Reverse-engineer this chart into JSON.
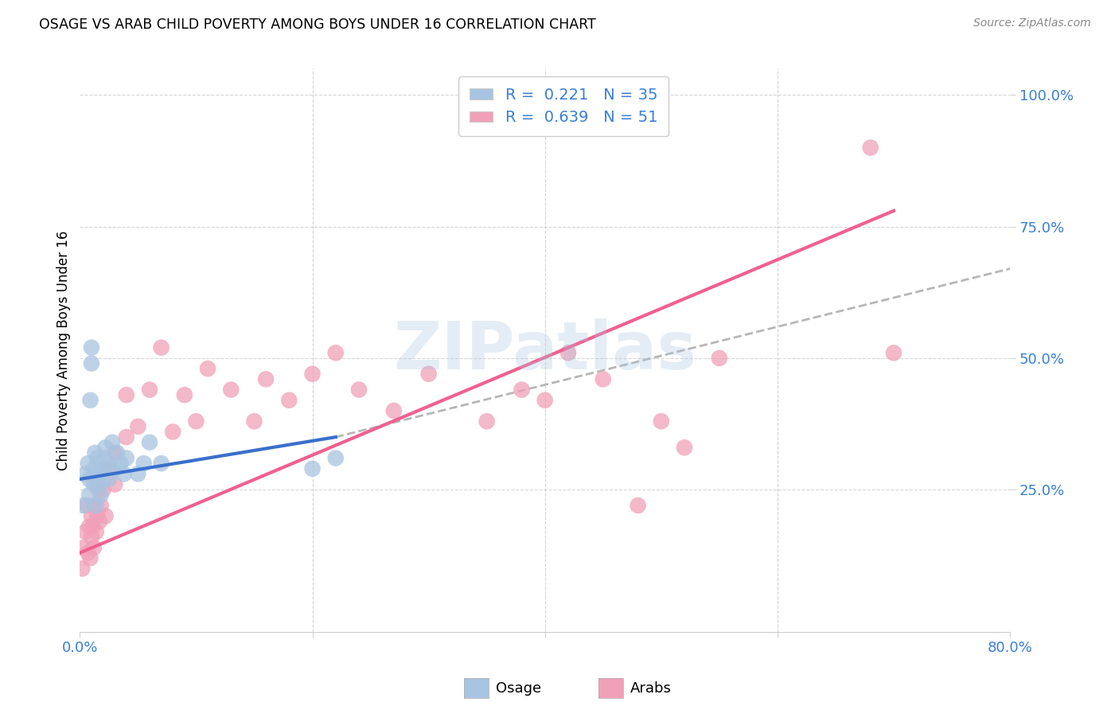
{
  "title": "OSAGE VS ARAB CHILD POVERTY AMONG BOYS UNDER 16 CORRELATION CHART",
  "source": "Source: ZipAtlas.com",
  "ylabel": "Child Poverty Among Boys Under 16",
  "xlim": [
    0.0,
    0.8
  ],
  "ylim": [
    -0.02,
    1.05
  ],
  "xticks": [
    0.0,
    0.2,
    0.4,
    0.6,
    0.8
  ],
  "xtick_labels": [
    "0.0%",
    "",
    "",
    "",
    "80.0%"
  ],
  "ytick_labels": [
    "25.0%",
    "50.0%",
    "75.0%",
    "100.0%"
  ],
  "yticks": [
    0.25,
    0.5,
    0.75,
    1.0
  ],
  "watermark": "ZIPatlas",
  "osage_color": "#a8c4e0",
  "arab_color": "#f0a0b8",
  "osage_line_color": "#3a6fcd",
  "arab_line_color": "#f06090",
  "dash_color": "#aaaaaa",
  "osage_R": 0.221,
  "osage_N": 35,
  "arab_R": 0.639,
  "arab_N": 51,
  "legend_label_osage": "Osage",
  "legend_label_arab": "Arabs",
  "osage_x": [
    0.003,
    0.005,
    0.007,
    0.008,
    0.008,
    0.009,
    0.01,
    0.01,
    0.012,
    0.012,
    0.013,
    0.014,
    0.015,
    0.015,
    0.016,
    0.017,
    0.018,
    0.019,
    0.02,
    0.021,
    0.022,
    0.025,
    0.025,
    0.028,
    0.03,
    0.032,
    0.035,
    0.038,
    0.04,
    0.05,
    0.055,
    0.06,
    0.07,
    0.2,
    0.22
  ],
  "osage_y": [
    0.22,
    0.28,
    0.3,
    0.24,
    0.27,
    0.42,
    0.49,
    0.52,
    0.26,
    0.29,
    0.32,
    0.22,
    0.27,
    0.31,
    0.28,
    0.26,
    0.24,
    0.27,
    0.29,
    0.31,
    0.33,
    0.27,
    0.3,
    0.34,
    0.29,
    0.32,
    0.3,
    0.28,
    0.31,
    0.28,
    0.3,
    0.34,
    0.3,
    0.29,
    0.31
  ],
  "arab_x": [
    0.002,
    0.003,
    0.005,
    0.006,
    0.007,
    0.008,
    0.009,
    0.01,
    0.01,
    0.011,
    0.012,
    0.013,
    0.014,
    0.015,
    0.016,
    0.017,
    0.018,
    0.02,
    0.022,
    0.025,
    0.03,
    0.03,
    0.04,
    0.04,
    0.05,
    0.06,
    0.07,
    0.08,
    0.09,
    0.1,
    0.11,
    0.13,
    0.15,
    0.16,
    0.18,
    0.2,
    0.22,
    0.24,
    0.27,
    0.3,
    0.35,
    0.38,
    0.4,
    0.42,
    0.45,
    0.48,
    0.5,
    0.52,
    0.55,
    0.68,
    0.7
  ],
  "arab_y": [
    0.1,
    0.14,
    0.17,
    0.22,
    0.13,
    0.18,
    0.12,
    0.2,
    0.16,
    0.18,
    0.14,
    0.22,
    0.17,
    0.2,
    0.25,
    0.19,
    0.22,
    0.25,
    0.2,
    0.29,
    0.26,
    0.32,
    0.35,
    0.43,
    0.37,
    0.44,
    0.52,
    0.36,
    0.43,
    0.38,
    0.48,
    0.44,
    0.38,
    0.46,
    0.42,
    0.47,
    0.51,
    0.44,
    0.4,
    0.47,
    0.38,
    0.44,
    0.42,
    0.51,
    0.46,
    0.22,
    0.38,
    0.33,
    0.5,
    0.9,
    0.51
  ],
  "osage_line_x": [
    0.0,
    0.22
  ],
  "osage_line_y": [
    0.27,
    0.35
  ],
  "arab_line_x": [
    0.0,
    0.7
  ],
  "arab_line_y": [
    0.13,
    0.78
  ],
  "dash_line_x": [
    0.22,
    0.8
  ],
  "dash_line_y": [
    0.35,
    0.67
  ]
}
